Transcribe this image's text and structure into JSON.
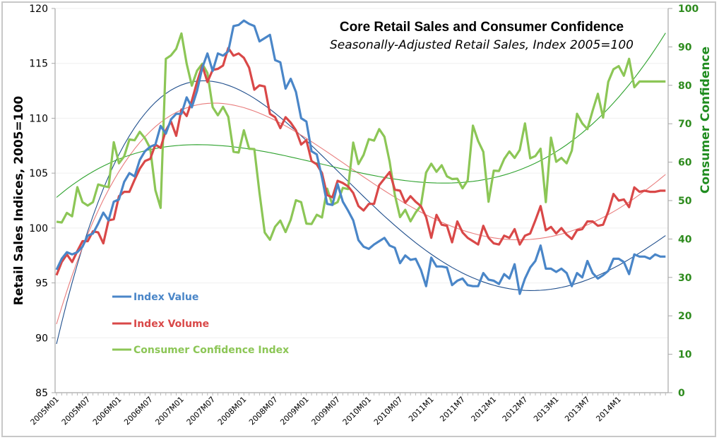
{
  "chart_data": {
    "type": "line",
    "title": "Core Retail Sales and Consumer Confidence",
    "subtitle": "Seasonally-Adjusted Retail Sales, Index 2005=100",
    "ylabel": "Retail Sales  Indices, 2005=100",
    "y2label": "Consumer Confidence",
    "ylim": [
      85,
      120
    ],
    "y2lim": [
      0,
      100
    ],
    "yticks": [
      85,
      90,
      95,
      100,
      105,
      110,
      115,
      120
    ],
    "y2ticks": [
      0,
      10,
      20,
      30,
      40,
      50,
      60,
      70,
      80,
      90,
      100
    ],
    "grid": true,
    "legend_position": "lower-left",
    "x_start": "2005M01",
    "x_end": "2014M10",
    "x_tick_labels": [
      "2005M01",
      "2005M07",
      "2006M01",
      "2006M07",
      "2007M01",
      "2007M07",
      "2008M01",
      "2008M07",
      "2009M01",
      "2009M07",
      "2010M01",
      "2010M07",
      "2011M1",
      "2011M7",
      "2012M1",
      "2012M7",
      "2013M1",
      "2013M7",
      "2014M1"
    ],
    "series": [
      {
        "name": "Index Value",
        "axis": "left",
        "color": "#4a86c8",
        "trend_color": "#1f4e8c",
        "values": [
          96.2,
          97.2,
          97.8,
          97.6,
          97.8,
          98.3,
          99.3,
          99.5,
          100.4,
          101.4,
          100.7,
          102.4,
          102.6,
          104.2,
          105.0,
          104.7,
          106.2,
          107.0,
          107.4,
          107.6,
          109.3,
          108.6,
          109.9,
          110.4,
          110.4,
          111.9,
          111.0,
          112.5,
          114.6,
          115.9,
          114.3,
          115.9,
          115.7,
          116.1,
          118.4,
          118.5,
          118.9,
          118.6,
          118.4,
          117.0,
          117.3,
          117.6,
          115.3,
          115.1,
          112.7,
          113.6,
          112.4,
          110.0,
          109.7,
          107.0,
          106.7,
          104.6,
          102.2,
          102.1,
          104.0,
          102.4,
          101.6,
          100.7,
          98.9,
          98.3,
          98.1,
          98.5,
          98.8,
          99.1,
          98.4,
          98.2,
          96.8,
          97.5,
          97.1,
          97.2,
          96.2,
          94.7,
          97.3,
          96.5,
          96.5,
          96.4,
          94.8,
          95.2,
          95.4,
          94.8,
          94.7,
          94.7,
          95.9,
          95.3,
          95.2,
          94.9,
          95.8,
          95.4,
          96.7,
          94.0,
          95.4,
          96.4,
          97.0,
          98.4,
          96.3,
          96.3,
          96.0,
          96.3,
          95.9,
          94.7,
          95.9,
          95.5,
          97.0,
          95.9,
          95.4,
          95.7,
          96.1,
          97.2,
          97.2,
          96.9,
          95.8,
          97.6,
          97.4,
          97.4,
          97.2,
          97.6,
          97.4,
          97.4
        ],
        "trend": "polynomial"
      },
      {
        "name": "Index Volume",
        "axis": "left",
        "color": "#d94848",
        "trend_color": "#e87b7b",
        "values": [
          95.7,
          96.9,
          97.6,
          96.9,
          97.9,
          98.8,
          98.8,
          99.7,
          99.6,
          98.6,
          100.7,
          100.8,
          102.9,
          103.3,
          103.3,
          104.4,
          105.4,
          106.1,
          106.3,
          107.6,
          107.3,
          108.9,
          109.7,
          108.4,
          110.8,
          110.2,
          111.6,
          113.3,
          114.8,
          113.3,
          114.4,
          114.5,
          114.8,
          116.4,
          115.7,
          115.9,
          115.5,
          114.6,
          112.6,
          113.0,
          112.9,
          110.4,
          110.1,
          109.1,
          110.1,
          109.6,
          108.9,
          107.6,
          108.0,
          106.1,
          105.8,
          105.0,
          103.0,
          102.8,
          104.3,
          104.1,
          103.8,
          103.2,
          102.0,
          101.6,
          102.2,
          102.2,
          103.9,
          104.5,
          105.1,
          103.5,
          103.4,
          102.3,
          102.9,
          102.4,
          102.0,
          101.0,
          99.1,
          101.2,
          100.3,
          100.2,
          98.7,
          100.6,
          99.6,
          99.1,
          98.8,
          98.5,
          100.2,
          99.1,
          98.6,
          98.5,
          99.3,
          99.1,
          99.9,
          98.5,
          99.3,
          99.5,
          100.7,
          102.0,
          99.8,
          100.1,
          99.5,
          100.0,
          99.4,
          99.0,
          99.8,
          99.9,
          100.6,
          100.6,
          100.2,
          100.3,
          101.5,
          103.1,
          102.5,
          102.6,
          101.9,
          103.7,
          103.3,
          103.4,
          103.3,
          103.3,
          103.4,
          103.4
        ],
        "trend": "polynomial"
      },
      {
        "name": "Consumer Confidence Index",
        "axis": "right",
        "color": "#8cc656",
        "trend_color": "#2ea22e",
        "values": [
          44.5,
          44.3,
          46.8,
          45.9,
          53.5,
          49.6,
          48.7,
          49.6,
          54.2,
          53.8,
          53.5,
          65.2,
          59.7,
          61.5,
          65.9,
          65.7,
          67.9,
          66.2,
          63.6,
          52.7,
          48.1,
          86.9,
          87.8,
          89.5,
          93.5,
          85.6,
          79.9,
          83.8,
          85.6,
          83.2,
          74.3,
          72.2,
          74.4,
          71.8,
          62.7,
          62.5,
          68.3,
          63.5,
          63.4,
          52.0,
          41.7,
          39.8,
          43.2,
          44.8,
          41.8,
          45.0,
          50.1,
          49.6,
          44.0,
          43.9,
          46.3,
          45.6,
          53.1,
          48.9,
          49.6,
          53.3,
          53.0,
          65.1,
          59.5,
          61.9,
          66.0,
          65.6,
          68.6,
          66.6,
          60.1,
          51.5,
          45.7,
          47.6,
          44.6,
          46.9,
          48.7,
          57.3,
          59.6,
          57.5,
          59.2,
          56.3,
          55.6,
          55.7,
          53.2,
          55.3,
          69.5,
          65.5,
          62.7,
          49.7,
          57.8,
          57.7,
          60.8,
          62.8,
          61.1,
          63.2,
          70.1,
          61.0,
          61.6,
          63.5,
          49.6,
          66.4,
          60.1,
          61.1,
          59.7,
          63.0,
          72.6,
          70.1,
          68.6,
          73.4,
          77.8,
          71.6,
          80.9,
          84.2,
          85.0,
          82.5,
          86.9,
          79.5,
          81.0,
          81.0,
          81.0,
          81.0,
          81.0,
          81.0
        ],
        "trend": "polynomial"
      }
    ]
  },
  "legend": [
    {
      "label": "Index Value",
      "color": "#4a86c8"
    },
    {
      "label": "Index Volume",
      "color": "#d94848"
    },
    {
      "label": "Consumer Confidence Index",
      "color": "#8cc656"
    }
  ]
}
